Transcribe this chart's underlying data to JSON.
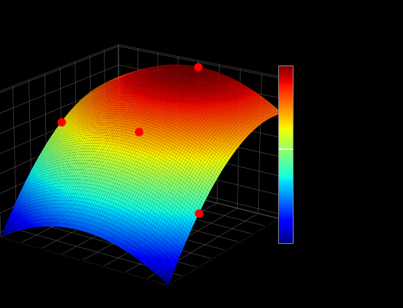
{
  "background_color": "#000000",
  "colormap": "jet",
  "elev": 20,
  "azim": -55,
  "surface_alpha": 1.0,
  "grid_color": [
    0.3,
    0.3,
    0.3,
    1.0
  ],
  "point_color": "red",
  "point_size": 60,
  "b0": 5.5,
  "b1": 0.0,
  "b2": 5.5,
  "b11": -3.0,
  "b22": -3.5,
  "b12": 0.0,
  "n_grid": 80,
  "red_points": [
    [
      0.0,
      1.0
    ],
    [
      -1.0,
      0.0
    ],
    [
      0.1,
      -0.2
    ],
    [
      1.0,
      -0.5
    ]
  ],
  "colorbar_shrink": 0.55,
  "colorbar_aspect": 12,
  "figsize": [
    5.78,
    4.42
  ],
  "dpi": 100
}
